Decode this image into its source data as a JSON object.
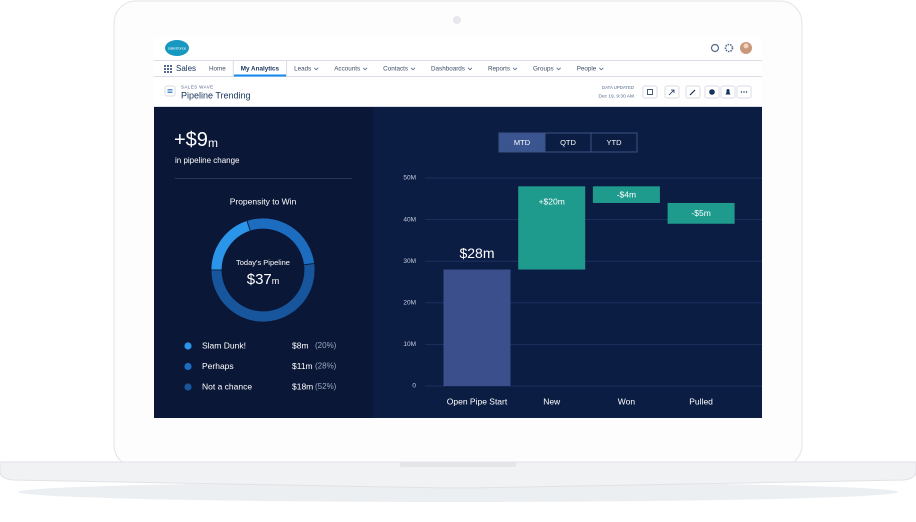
{
  "app": {
    "logo": "salesforce",
    "name": "Sales"
  },
  "nav": {
    "tabs": [
      {
        "label": "Home",
        "menu": false
      },
      {
        "label": "My Analytics",
        "menu": false
      },
      {
        "label": "Leads",
        "menu": true
      },
      {
        "label": "Accounts",
        "menu": true
      },
      {
        "label": "Contacts",
        "menu": true
      },
      {
        "label": "Dashboards",
        "menu": true
      },
      {
        "label": "Reports",
        "menu": true
      },
      {
        "label": "Groups",
        "menu": true
      },
      {
        "label": "People",
        "menu": true
      }
    ],
    "selected": 1
  },
  "page_header": {
    "eyebrow": "SALES WAVE",
    "title": "Pipeline Trending",
    "updated_label": "DATA UPDATED",
    "updated_time": "Dec 19, 9:30 AM"
  },
  "summary": {
    "amount": "+$9",
    "unit": "m",
    "caption": "in pipeline change"
  },
  "periods": {
    "options": [
      "MTD",
      "QTD",
      "YTD"
    ],
    "selected": 0
  },
  "chart_data": [
    {
      "type": "donut",
      "title": "Propensity to Win",
      "center_label": "Today's Pipeline",
      "center_amount": "$37",
      "center_unit": "m",
      "categories": [
        "Slam Dunk!",
        "Perhaps",
        "Not a chance"
      ],
      "values": [
        20,
        28,
        52
      ],
      "value_labels": [
        "(20%)",
        "(28%)",
        "(52%)"
      ],
      "amounts": [
        "$8m",
        "$11m",
        "$18m"
      ],
      "colors": [
        "#2b95ea",
        "#1c6cc0",
        "#17559c"
      ]
    },
    {
      "type": "waterfall",
      "categories": [
        "Open Pipe Start",
        "New",
        "Won",
        "Pulled"
      ],
      "values": [
        28,
        20,
        -4,
        -5
      ],
      "value_labels": [
        "$28m",
        "+$20m",
        "-$4m",
        "-$5m"
      ],
      "colors": [
        "#3a4f8c",
        "#1f9b8e",
        "#1f9b8e",
        "#1f9b8e"
      ],
      "ylim": [
        0,
        50
      ],
      "yticks": [
        0,
        {
          "value": 10,
          "label": "10M"
        },
        {
          "value": 20,
          "label": "20M"
        },
        {
          "value": 30,
          "label": "30M"
        },
        {
          "value": 40,
          "label": "40M"
        },
        {
          "value": 50,
          "label": "50M"
        }
      ],
      "grid": true
    }
  ]
}
